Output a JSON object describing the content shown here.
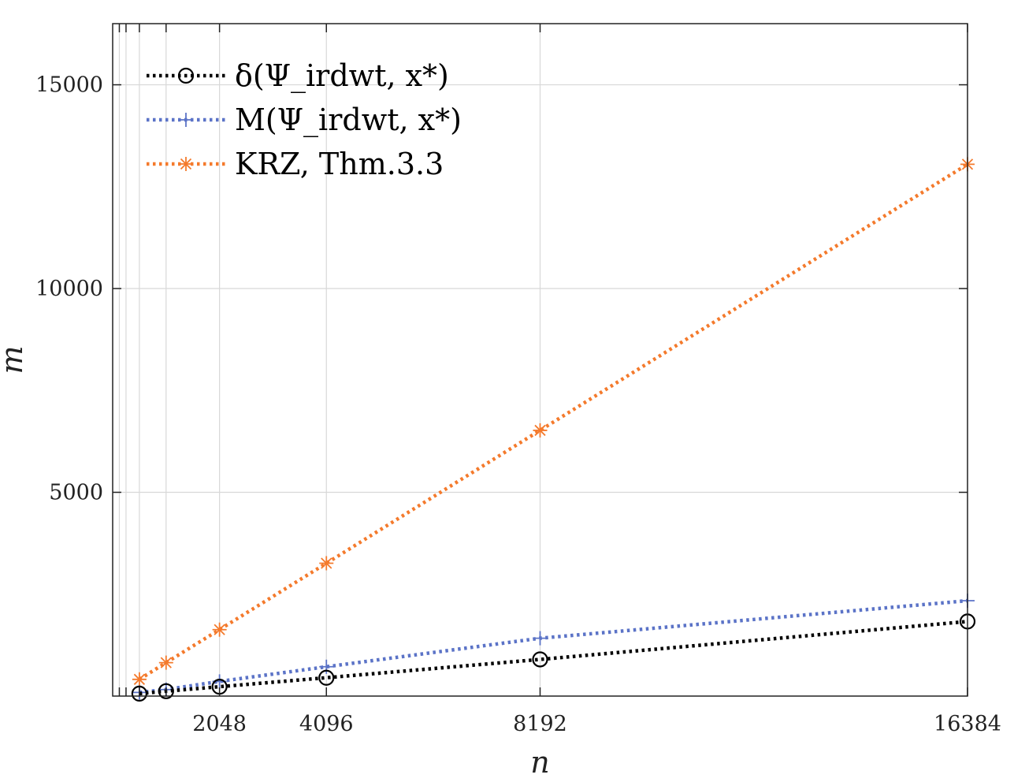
{
  "chart_data": {
    "type": "line",
    "title": "",
    "xlabel": "n",
    "ylabel": "m",
    "xlim": [
      0,
      16384
    ],
    "ylim": [
      0,
      16500
    ],
    "xticks": [
      2048,
      4096,
      8192,
      16384
    ],
    "xtick_labels": [
      "2048",
      "4096",
      "8192",
      "16384"
    ],
    "minor_x_gridlines": [
      128,
      256,
      512,
      1024
    ],
    "yticks": [
      5000,
      10000,
      15000
    ],
    "ytick_labels": [
      "5000",
      "10000",
      "15000"
    ],
    "grid": true,
    "legend_position": "top-left",
    "x": [
      512,
      1024,
      2048,
      4096,
      8192,
      16384
    ],
    "series": [
      {
        "name": "δ(Ψ_irdwt, x*)",
        "color": "#000000",
        "marker": "circle",
        "values": [
          60,
          120,
          230,
          450,
          900,
          1830
        ]
      },
      {
        "name": "M(Ψ_irdwt, x*)",
        "color": "#5b73c7",
        "marker": "plus",
        "values": [
          90,
          160,
          360,
          720,
          1420,
          2340
        ]
      },
      {
        "name": "KRZ, Thm.3.3",
        "color": "#f47a2c",
        "marker": "asterisk",
        "values": [
          410,
          820,
          1630,
          3260,
          6520,
          13050
        ]
      }
    ]
  }
}
